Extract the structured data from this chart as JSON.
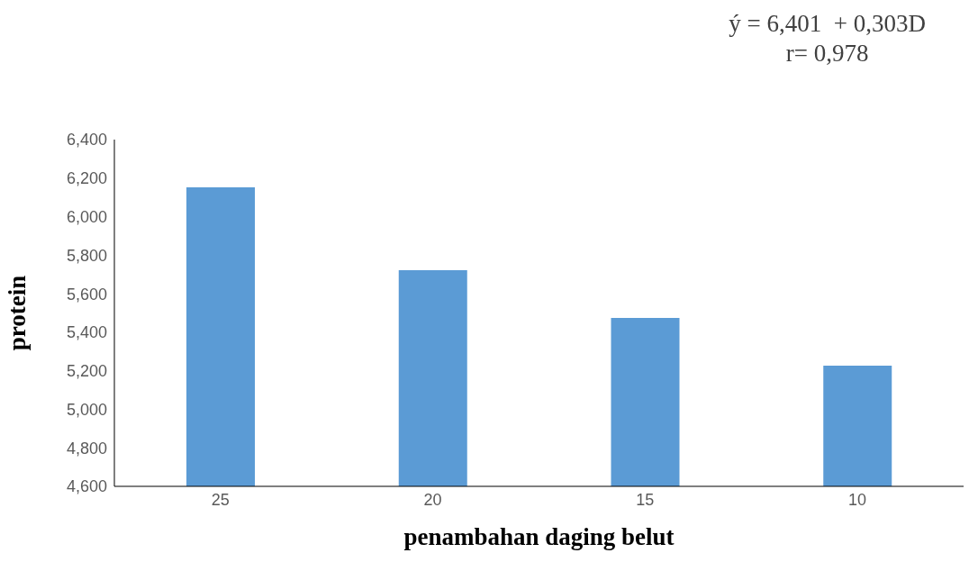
{
  "chart_data": {
    "type": "bar",
    "xlabel": "penambahan daging belut",
    "ylabel": "protein",
    "annotations": [
      "ý = 6,401  + 0,303D",
      "r= 0,978"
    ],
    "categories": [
      "25",
      "20",
      "15",
      "10"
    ],
    "values": [
      6.152,
      5.722,
      5.474,
      5.226
    ],
    "color": "#5b9bd5",
    "ylim": [
      4.6,
      6.4
    ],
    "yticks": [
      {
        "value": 4.6,
        "label": "4,600"
      },
      {
        "value": 4.8,
        "label": "4,800"
      },
      {
        "value": 5.0,
        "label": "5,000"
      },
      {
        "value": 5.2,
        "label": "5,200"
      },
      {
        "value": 5.4,
        "label": "5,400"
      },
      {
        "value": 5.6,
        "label": "5,600"
      },
      {
        "value": 5.8,
        "label": "5,800"
      },
      {
        "value": 6.0,
        "label": "6,000"
      },
      {
        "value": 6.2,
        "label": "6,200"
      },
      {
        "value": 6.4,
        "label": "6,400"
      }
    ],
    "grid": false,
    "legend": false
  }
}
